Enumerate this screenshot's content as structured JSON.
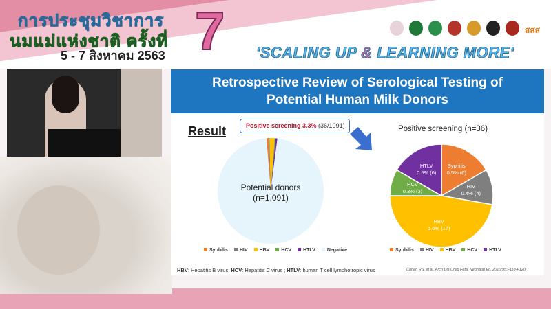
{
  "banner": {
    "thai_title_line1": "การประชุมวิชาการ",
    "thai_title_line2": "นมแม่แห่งชาติ ครั้งที่",
    "edition": "7",
    "dates": "5 - 7 สิงหาคม 2563",
    "slogan_part1": "'SCALING UP ",
    "slogan_amp": "&",
    "slogan_part2": " LEARNING MORE'",
    "logo_text": "สสส"
  },
  "slide": {
    "title_line1": "Retrospective Review of Serological Testing of",
    "title_line2": "Potential Human Milk Donors",
    "result_label": "Result",
    "callout_bold": "Positive screening 3.3%",
    "callout_rest": " (36/1091)",
    "donors_line1": "Potential donors",
    "donors_line2": "(n=1,091)",
    "footnote_hbv_abbr": "HBV",
    "footnote_hbv": ": Hepatitis B virus; ",
    "footnote_hcv_abbr": "HCV",
    "footnote_hcv": ": Hepatitis C virus ; ",
    "footnote_htlv_abbr": "HTLV",
    "footnote_htlv": ": human T cell lymphotropic virus",
    "citation": "Cohen RS, et al. Arch Dis Child Fetal Neonatal Ed. 2010;95:F118-F120."
  },
  "chart_data": [
    {
      "type": "pie",
      "title": "",
      "center_label": "Potential donors (n=1,091)",
      "categories": [
        "Syphilis",
        "HIV",
        "HBV",
        "HCV",
        "HTLV",
        "Negative"
      ],
      "values": [
        6,
        4,
        17,
        3,
        6,
        1055
      ],
      "colors": [
        "#ed7d31",
        "#7f7f7f",
        "#ffc000",
        "#70ad47",
        "#7030a0",
        "#e6f5fc"
      ],
      "legend": "bottom"
    },
    {
      "type": "pie",
      "title": "Positive screening (n=36)",
      "categories": [
        "Syphilis",
        "HIV",
        "HBV",
        "HCV",
        "HTLV"
      ],
      "values": [
        6,
        4,
        17,
        3,
        6
      ],
      "labels": [
        "0.5% (6)",
        "0.4% (4)",
        "1.6% (17)",
        "0.3% (3)",
        "0.5% (6)"
      ],
      "colors": [
        "#ed7d31",
        "#7f7f7f",
        "#ffc000",
        "#70ad47",
        "#7030a0"
      ],
      "legend": "bottom"
    }
  ]
}
